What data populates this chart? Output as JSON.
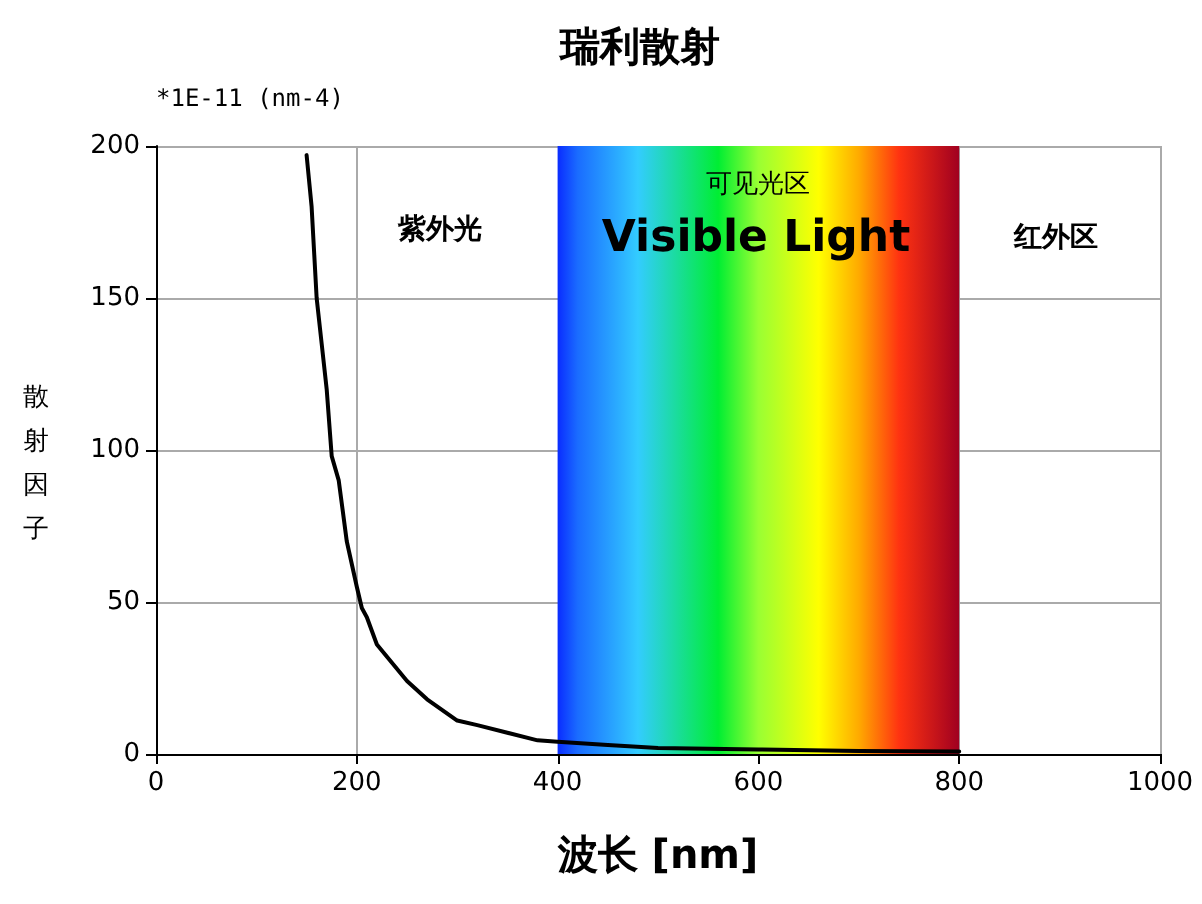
{
  "chart_data": {
    "type": "line",
    "title": "瑞利散射",
    "xlabel": "波长 [nm]",
    "ylabel": "散射因子",
    "annotations": [
      "*1E-11 (nm-4)",
      "紫外光",
      "Visible Light",
      "红外区"
    ],
    "x": [
      150,
      155,
      160,
      165,
      170,
      175,
      182,
      190,
      200,
      205,
      210,
      220,
      235,
      250,
      270,
      300,
      320,
      350,
      380,
      400,
      450,
      500,
      600,
      700,
      800
    ],
    "series": [
      {
        "color": "#000000",
        "values": [
          197,
          180,
          150,
          135,
          120,
          98,
          90,
          70,
          55,
          48,
          45,
          36,
          30,
          24,
          18,
          11,
          9.5,
          7,
          4.5,
          4,
          3,
          2,
          1.5,
          1,
          0.8
        ]
      }
    ],
    "xlim": [
      0,
      1000
    ],
    "xticks": [
      0,
      200,
      400,
      600,
      800,
      1000
    ],
    "ylim": [
      0,
      200
    ],
    "yticks": [
      0,
      50,
      100,
      150,
      200
    ],
    "bands": [
      {
        "axis": "x",
        "from": 400,
        "to": 800,
        "label": "可见光区"
      }
    ],
    "grid": true,
    "marker": "none",
    "line_style": "solid"
  }
}
